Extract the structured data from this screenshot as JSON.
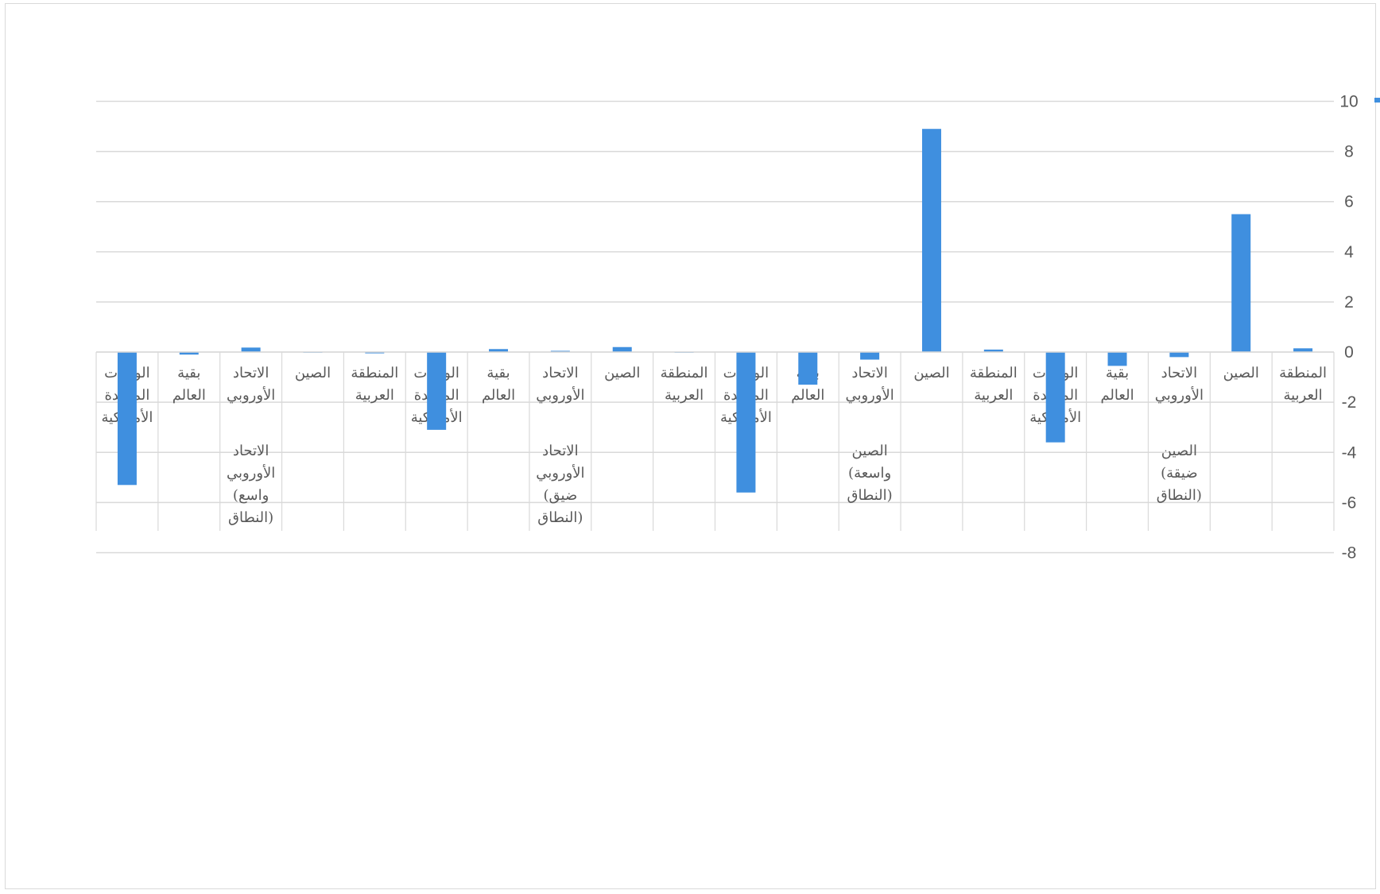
{
  "chart_data": {
    "type": "bar",
    "orientation": "vertical",
    "y_axis_position": "right",
    "ylim": [
      -8,
      10
    ],
    "yticks": [
      10,
      8,
      6,
      4,
      2,
      0,
      -2,
      -4,
      -6,
      -8
    ],
    "grid": true,
    "bar_color": "#3F8FDF",
    "categories": [
      "المنطقة العربية",
      "الصين",
      "الاتحاد الأوروبي",
      "بقية العالم",
      "الولايات المتحدة الأمريكية",
      "المنطقة العربية",
      "الصين",
      "الاتحاد الأوروبي",
      "بقية العالم",
      "الولايات المتحدة الأمريكية",
      "المنطقة العربية",
      "الصين",
      "الاتحاد الأوروبي",
      "بقية العالم",
      "الولايات المتحدة الأمريكية",
      "المنطقة العربية",
      "الصين",
      "الاتحاد الأوروبي",
      "بقية العالم",
      "الولايات المتحدة الأمريكية"
    ],
    "groups": [
      "الصين (ضيقة النطاق)",
      "الصين (واسعة النطاق)",
      "الاتحاد الأوروبي (ضيق النطاق)",
      "الاتحاد الأوروبي (واسع النطاق)"
    ],
    "values": [
      0.15,
      5.5,
      -0.2,
      -0.55,
      -3.6,
      0.1,
      8.9,
      -0.3,
      -1.3,
      -5.6,
      0.0,
      0.2,
      0.05,
      0.12,
      -3.1,
      -0.05,
      -0.02,
      0.18,
      -0.1,
      -5.3
    ]
  }
}
